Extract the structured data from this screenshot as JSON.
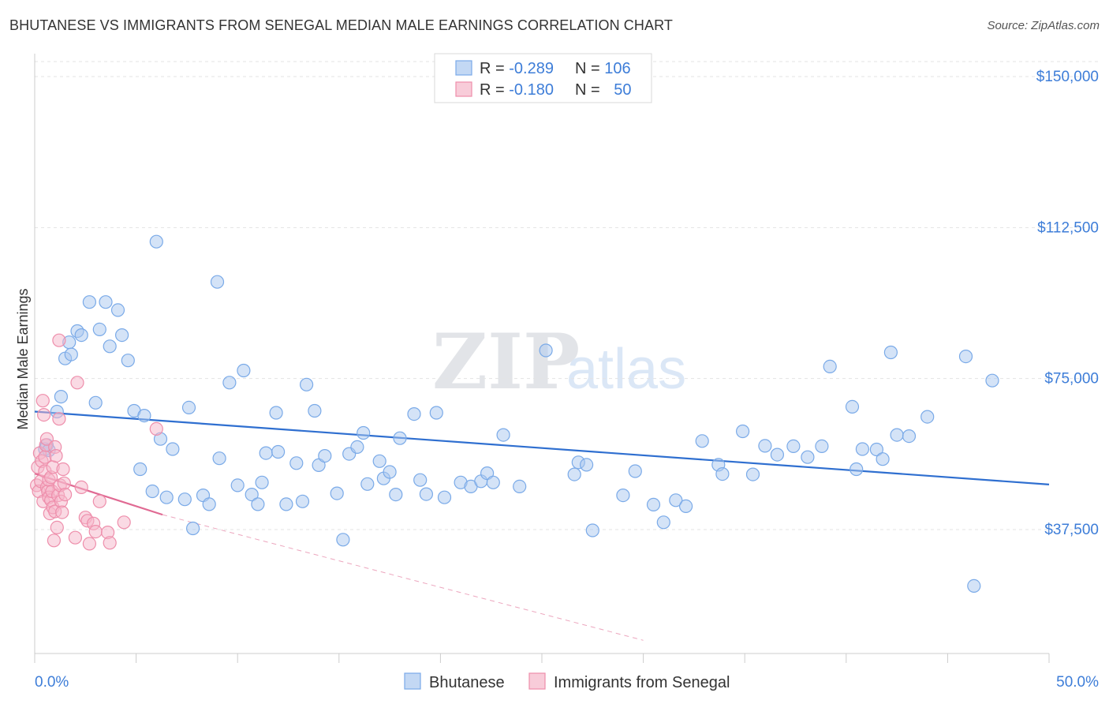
{
  "header": {
    "title": "BHUTANESE VS IMMIGRANTS FROM SENEGAL MEDIAN MALE EARNINGS CORRELATION CHART",
    "source": "Source: ZipAtlas.com"
  },
  "watermark": {
    "part1": "ZIP",
    "part2": "atlas"
  },
  "legend_box": {
    "rows": [
      {
        "r_label": "R = ",
        "r_value": "-0.289",
        "n_label": "N = ",
        "n_value": "106",
        "color": "#a9c8f0"
      },
      {
        "r_label": "R = ",
        "r_value": "-0.180",
        "n_label": "N = ",
        "n_value": "50",
        "color": "#f5b6c9"
      }
    ]
  },
  "chart_data": {
    "type": "scatter",
    "ylabel": "Median Male Earnings",
    "xlim": [
      0,
      50
    ],
    "ylim": [
      10000,
      155000
    ],
    "y_ticks": [
      {
        "value": 37500,
        "label": "$37,500"
      },
      {
        "value": 75000,
        "label": "$75,000"
      },
      {
        "value": 112500,
        "label": "$112,500"
      },
      {
        "value": 150000,
        "label": "$150,000"
      }
    ],
    "x_tick_labels": {
      "min": "0.0%",
      "max": "50.0%"
    },
    "grid": "horizontal dashed",
    "legend_position": "top-center",
    "series": [
      {
        "name": "Bhutanese",
        "color": "#7aaae8",
        "fill": "#a9c8f0",
        "trend": {
          "x": [
            0.0,
            50.0
          ],
          "y": [
            66800,
            48700
          ],
          "dashed_extension": false,
          "line_color": "#2f6fd0"
        },
        "points": [
          [
            0.5,
            57500
          ],
          [
            0.6,
            58500
          ],
          [
            0.7,
            57200
          ],
          [
            1.1,
            66800
          ],
          [
            1.3,
            70500
          ],
          [
            1.5,
            80000
          ],
          [
            1.7,
            84000
          ],
          [
            1.8,
            81000
          ],
          [
            2.1,
            86800
          ],
          [
            2.3,
            85800
          ],
          [
            2.7,
            94000
          ],
          [
            3.0,
            69000
          ],
          [
            3.2,
            87200
          ],
          [
            3.5,
            94000
          ],
          [
            3.7,
            83000
          ],
          [
            4.1,
            92000
          ],
          [
            4.3,
            85800
          ],
          [
            4.6,
            79500
          ],
          [
            4.9,
            67000
          ],
          [
            5.2,
            52500
          ],
          [
            5.4,
            65800
          ],
          [
            5.8,
            47000
          ],
          [
            6.0,
            109000
          ],
          [
            6.2,
            60000
          ],
          [
            6.5,
            45500
          ],
          [
            6.8,
            57500
          ],
          [
            7.4,
            45000
          ],
          [
            7.6,
            67800
          ],
          [
            7.8,
            37800
          ],
          [
            8.3,
            46000
          ],
          [
            8.6,
            43800
          ],
          [
            9.0,
            99000
          ],
          [
            9.1,
            55200
          ],
          [
            9.6,
            74000
          ],
          [
            10.0,
            48500
          ],
          [
            10.3,
            77000
          ],
          [
            10.7,
            46200
          ],
          [
            11.0,
            43800
          ],
          [
            11.2,
            49200
          ],
          [
            11.4,
            56500
          ],
          [
            11.9,
            66500
          ],
          [
            12.0,
            56800
          ],
          [
            12.4,
            43800
          ],
          [
            12.9,
            54000
          ],
          [
            13.2,
            44500
          ],
          [
            13.4,
            73500
          ],
          [
            13.8,
            67000
          ],
          [
            14.0,
            53500
          ],
          [
            14.3,
            55800
          ],
          [
            14.9,
            46500
          ],
          [
            15.2,
            35000
          ],
          [
            15.5,
            56300
          ],
          [
            15.9,
            58000
          ],
          [
            16.2,
            61500
          ],
          [
            16.4,
            48800
          ],
          [
            17.0,
            54500
          ],
          [
            17.2,
            50200
          ],
          [
            17.5,
            51800
          ],
          [
            17.8,
            46200
          ],
          [
            18.0,
            60200
          ],
          [
            18.7,
            66200
          ],
          [
            19.0,
            49800
          ],
          [
            19.3,
            46300
          ],
          [
            19.8,
            66500
          ],
          [
            20.2,
            45500
          ],
          [
            21.0,
            49200
          ],
          [
            21.5,
            48200
          ],
          [
            22.0,
            49500
          ],
          [
            22.3,
            51500
          ],
          [
            22.6,
            49200
          ],
          [
            23.1,
            61000
          ],
          [
            23.9,
            48200
          ],
          [
            25.2,
            82000
          ],
          [
            26.6,
            51200
          ],
          [
            26.8,
            54200
          ],
          [
            27.2,
            53600
          ],
          [
            27.5,
            37300
          ],
          [
            29.0,
            46000
          ],
          [
            29.6,
            52000
          ],
          [
            30.5,
            43700
          ],
          [
            31.0,
            39300
          ],
          [
            31.6,
            44800
          ],
          [
            32.1,
            43300
          ],
          [
            32.9,
            59500
          ],
          [
            33.7,
            53600
          ],
          [
            33.9,
            51300
          ],
          [
            34.9,
            61900
          ],
          [
            35.4,
            51200
          ],
          [
            36.0,
            58300
          ],
          [
            36.6,
            56100
          ],
          [
            37.4,
            58200
          ],
          [
            38.1,
            55500
          ],
          [
            38.8,
            58200
          ],
          [
            39.2,
            78000
          ],
          [
            40.3,
            68000
          ],
          [
            40.5,
            52500
          ],
          [
            40.8,
            57500
          ],
          [
            41.5,
            57400
          ],
          [
            41.8,
            55000
          ],
          [
            42.2,
            81500
          ],
          [
            42.5,
            61000
          ],
          [
            43.1,
            60700
          ],
          [
            44.0,
            65500
          ],
          [
            45.9,
            80500
          ],
          [
            46.3,
            23500
          ],
          [
            47.2,
            74500
          ]
        ]
      },
      {
        "name": "Immigrants from Senegal",
        "color": "#ee8eab",
        "fill": "#f5b6c9",
        "trend": {
          "x": [
            0.0,
            6.3
          ],
          "y": [
            51400,
            41200
          ],
          "dashed_extension": true,
          "ext_x": [
            6.3,
            30.0
          ],
          "ext_y": [
            41200,
            10000
          ],
          "line_color": "#e06a93"
        },
        "points": [
          [
            0.1,
            48500
          ],
          [
            0.15,
            53000
          ],
          [
            0.2,
            47000
          ],
          [
            0.25,
            56500
          ],
          [
            0.3,
            49500
          ],
          [
            0.35,
            54500
          ],
          [
            0.4,
            69500
          ],
          [
            0.42,
            44500
          ],
          [
            0.45,
            66000
          ],
          [
            0.5,
            52000
          ],
          [
            0.5,
            55500
          ],
          [
            0.55,
            58500
          ],
          [
            0.6,
            60000
          ],
          [
            0.6,
            48000
          ],
          [
            0.65,
            47000
          ],
          [
            0.7,
            49800
          ],
          [
            0.7,
            45500
          ],
          [
            0.75,
            41500
          ],
          [
            0.8,
            50500
          ],
          [
            0.8,
            44800
          ],
          [
            0.85,
            47000
          ],
          [
            0.9,
            53000
          ],
          [
            0.9,
            43000
          ],
          [
            0.95,
            34800
          ],
          [
            1.0,
            42000
          ],
          [
            1.0,
            58000
          ],
          [
            1.05,
            55800
          ],
          [
            1.1,
            38000
          ],
          [
            1.15,
            46000
          ],
          [
            1.2,
            65000
          ],
          [
            1.2,
            84500
          ],
          [
            1.25,
            48500
          ],
          [
            1.3,
            44500
          ],
          [
            1.35,
            41800
          ],
          [
            1.4,
            52500
          ],
          [
            1.45,
            49000
          ],
          [
            1.5,
            46200
          ],
          [
            2.0,
            35500
          ],
          [
            2.1,
            74000
          ],
          [
            2.3,
            48000
          ],
          [
            2.5,
            40500
          ],
          [
            2.6,
            39700
          ],
          [
            2.7,
            34000
          ],
          [
            2.9,
            39000
          ],
          [
            3.0,
            37000
          ],
          [
            3.2,
            44500
          ],
          [
            3.6,
            36800
          ],
          [
            3.7,
            34200
          ],
          [
            4.4,
            39300
          ],
          [
            6.0,
            62500
          ]
        ]
      }
    ]
  }
}
